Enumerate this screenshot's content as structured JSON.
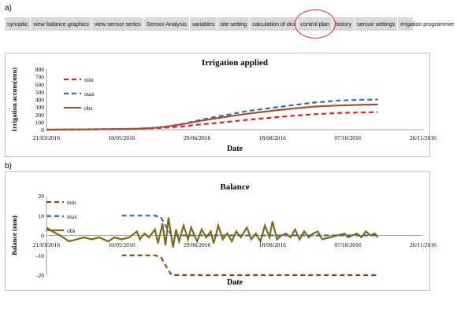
{
  "labels": {
    "a": "a)",
    "b": "b)"
  },
  "menu": {
    "items": [
      "synoptic",
      "view balance graphics",
      "view sensor series",
      "Sensor Analysis",
      "variables",
      "site setting",
      "calculation of dici",
      "control plan",
      "history",
      "sensor settings",
      "irrigation programmer"
    ],
    "highlighted": "control plan",
    "highlight_color": "#e3342f"
  },
  "chart_data": [
    {
      "type": "line",
      "title": "Irrigation applied",
      "xlabel": "Date",
      "ylabel": "Irrigation accum(mm)",
      "ylim": [
        0,
        800
      ],
      "yticks": [
        "0",
        "100",
        "200",
        "300",
        "400",
        "500",
        "600",
        "700",
        "800"
      ],
      "xticks": [
        "21/03/2016",
        "10/05/2016",
        "29/06/2016",
        "18/08/2016",
        "07/10/2016",
        "26/11/2016"
      ],
      "xlim": [
        "21/03/2016",
        "26/11/2016"
      ],
      "legend_position": "top-left",
      "series": [
        {
          "name": "min",
          "color": "#e02020",
          "style": "dashed",
          "x": [
            "21/03/2016",
            "10/05/2016",
            "20/05/2016",
            "01/06/2016",
            "10/06/2016",
            "20/06/2016",
            "29/06/2016",
            "10/07/2016",
            "20/07/2016",
            "01/08/2016",
            "18/08/2016",
            "01/09/2016",
            "15/09/2016",
            "01/10/2016",
            "15/10/2016",
            "27/10/2016"
          ],
          "y": [
            0,
            8,
            12,
            20,
            30,
            45,
            65,
            85,
            105,
            130,
            160,
            185,
            205,
            220,
            228,
            232
          ]
        },
        {
          "name": "max",
          "color": "#2a6fb8",
          "style": "dashed",
          "x": [
            "21/03/2016",
            "10/05/2016",
            "20/05/2016",
            "01/06/2016",
            "10/06/2016",
            "20/06/2016",
            "29/06/2016",
            "10/07/2016",
            "20/07/2016",
            "01/08/2016",
            "18/08/2016",
            "01/09/2016",
            "15/09/2016",
            "01/10/2016",
            "15/10/2016",
            "27/10/2016"
          ],
          "y": [
            0,
            8,
            12,
            25,
            45,
            80,
            120,
            165,
            200,
            245,
            290,
            325,
            360,
            385,
            395,
            400
          ]
        },
        {
          "name": "obs",
          "color": "#a0522d",
          "style": "solid",
          "x": [
            "21/03/2016",
            "10/05/2016",
            "20/05/2016",
            "01/06/2016",
            "10/06/2016",
            "20/06/2016",
            "29/06/2016",
            "10/07/2016",
            "20/07/2016",
            "01/08/2016",
            "18/08/2016",
            "01/09/2016",
            "15/09/2016",
            "01/10/2016",
            "15/10/2016",
            "27/10/2016"
          ],
          "y": [
            0,
            8,
            12,
            25,
            45,
            75,
            110,
            145,
            175,
            210,
            250,
            280,
            305,
            320,
            328,
            332
          ]
        }
      ]
    },
    {
      "type": "line",
      "title": "Balance",
      "xlabel": "Date",
      "ylabel": "Balance (mm)",
      "ylim": [
        -20,
        20
      ],
      "yticks": [
        "-20",
        "-10",
        "0",
        "10",
        "20"
      ],
      "xticks": [
        "21/03/2016",
        "10/05/2016",
        "29/06/2016",
        "18/08/2016",
        "07/10/2016",
        "26/11/2016"
      ],
      "xlim": [
        "21/03/2016",
        "26/11/2016"
      ],
      "legend_position": "top-left",
      "series": [
        {
          "name": "min",
          "color": "#8b4513",
          "style": "dashed",
          "x": [
            "21/03/2016",
            "08/04/2016",
            "10/05/2016",
            "01/06/2016",
            "05/06/2016",
            "08/06/2016",
            "12/06/2016",
            "27/10/2016"
          ],
          "y": [
            null,
            null,
            -10,
            -10,
            -11,
            -15,
            -20,
            -20
          ]
        },
        {
          "name": "max",
          "color": "#2a6fb8",
          "style": "dashed",
          "x": [
            "21/03/2016",
            "08/04/2016",
            "10/05/2016",
            "01/06/2016",
            "05/06/2016",
            "08/06/2016",
            "12/06/2016",
            "27/10/2016"
          ],
          "y": [
            null,
            null,
            10,
            10,
            9,
            5,
            0,
            0
          ]
        },
        {
          "name": "obs",
          "color": "#7f6a1a",
          "style": "solid",
          "x": [
            "21/03/2016",
            "25/03/2016",
            "30/03/2016",
            "05/04/2016",
            "10/04/2016",
            "15/04/2016",
            "20/04/2016",
            "25/04/2016",
            "01/05/2016",
            "05/05/2016",
            "10/05/2016",
            "15/05/2016",
            "20/05/2016",
            "22/05/2016",
            "25/05/2016",
            "28/05/2016",
            "01/06/2016",
            "03/06/2016",
            "06/06/2016",
            "08/06/2016",
            "10/06/2016",
            "13/06/2016",
            "15/06/2016",
            "17/06/2016",
            "20/06/2016",
            "23/06/2016",
            "25/06/2016",
            "29/06/2016",
            "02/07/2016",
            "05/07/2016",
            "08/07/2016",
            "10/07/2016",
            "13/07/2016",
            "16/07/2016",
            "19/07/2016",
            "22/07/2016",
            "25/07/2016",
            "28/07/2016",
            "01/08/2016",
            "04/08/2016",
            "07/08/2016",
            "10/08/2016",
            "13/08/2016",
            "16/08/2016",
            "18/08/2016",
            "21/08/2016",
            "24/08/2016",
            "27/08/2016",
            "30/08/2016",
            "02/09/2016",
            "05/09/2016",
            "08/09/2016",
            "11/09/2016",
            "14/09/2016",
            "17/09/2016",
            "20/09/2016",
            "25/09/2016",
            "30/09/2016",
            "05/10/2016",
            "07/10/2016",
            "10/10/2016",
            "13/10/2016",
            "16/10/2016",
            "19/10/2016",
            "22/10/2016",
            "25/10/2016",
            "27/10/2016"
          ],
          "y": [
            4,
            2,
            0,
            -3,
            -2,
            -1,
            -2,
            -1,
            -3,
            -1,
            -2,
            -1,
            2,
            -2,
            1,
            -1,
            3,
            -4,
            6,
            -5,
            9,
            -6,
            3,
            -3,
            5,
            -2,
            4,
            -3,
            3,
            -1,
            2,
            -4,
            5,
            -2,
            1,
            -3,
            2,
            -1,
            4,
            -2,
            1,
            -3,
            5,
            -1,
            7,
            -2,
            0,
            1,
            -1,
            3,
            -2,
            2,
            -1,
            1,
            2,
            -2,
            -1,
            0,
            1,
            -1,
            0,
            1,
            -1,
            2,
            0,
            1,
            -1
          ]
        }
      ]
    }
  ]
}
